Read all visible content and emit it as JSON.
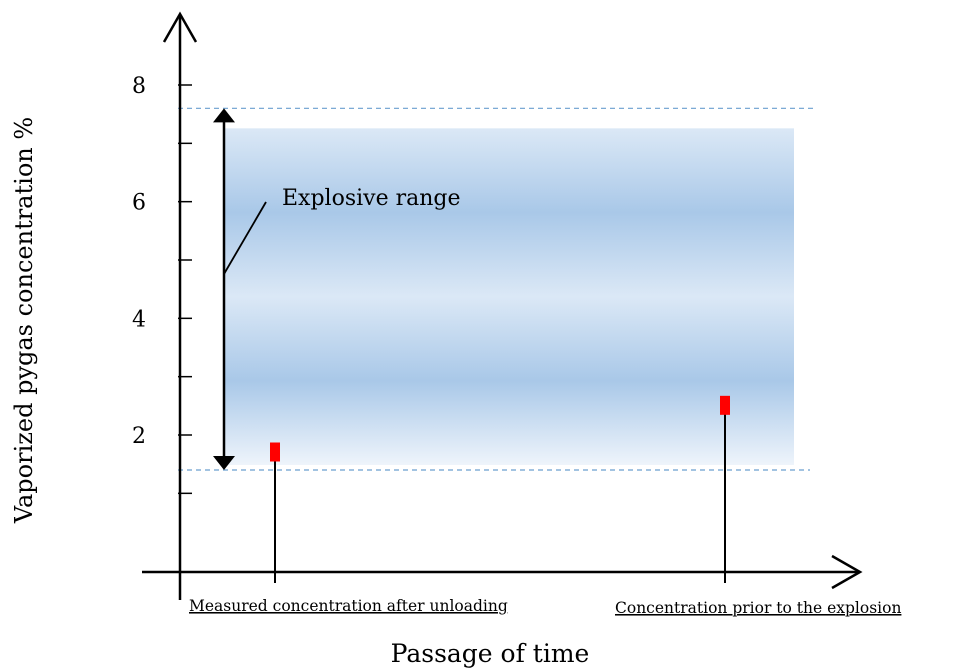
{
  "chart_data": {
    "type": "bar",
    "title": "",
    "xlabel": "Passage of time",
    "ylabel": "Vaporized pygas concentration %",
    "yticks": [
      2,
      4,
      6,
      8
    ],
    "ylim": [
      0,
      9
    ],
    "categories": [
      "Measured concentration after unloading",
      "Concentration prior to the explosion"
    ],
    "values": [
      1.7,
      2.5
    ],
    "explosive_range": {
      "label": "Explosive range",
      "lower": 1.4,
      "upper": 7.6
    },
    "grid": false,
    "colors": {
      "marker": "#ff0000",
      "band": "#a9c8e8",
      "dashed_line": "#6a9fcf",
      "axis": "#000000"
    }
  }
}
